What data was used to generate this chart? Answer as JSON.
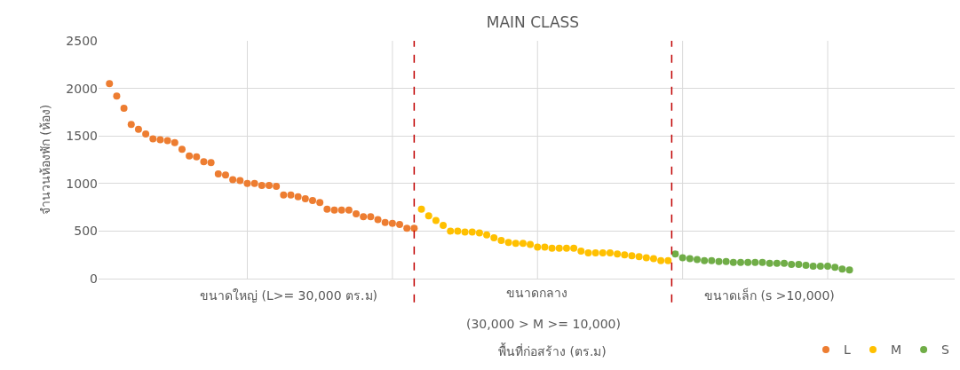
{
  "chart_data": {
    "type": "scatter",
    "title": "MAIN CLASS",
    "xlabel": "พื้นที่ก่อสร้าง (ตร.ม)",
    "ylabel": "จำนวนห้องพัก (ห้อง)",
    "annotations": [
      "ขนาดใหญ่ (L>= 30,000 ตร.ม)",
      "ขนาดกลาง",
      "(30,000 > M >= 10,000)",
      "ขนาดเล็ก (s >10,000)"
    ],
    "categories": [
      null,
      null,
      null,
      null,
      null,
      null,
      null,
      null,
      null,
      null,
      null,
      null,
      null,
      null,
      null,
      null,
      null,
      null,
      null,
      null,
      null,
      null,
      null,
      null,
      null,
      null,
      null,
      null,
      null,
      null,
      null,
      null,
      null,
      null,
      null,
      null,
      null,
      null,
      null,
      null,
      null,
      null,
      null,
      null,
      null,
      null,
      null,
      null,
      null,
      null,
      null,
      null,
      null,
      null,
      null,
      null,
      null,
      null,
      null,
      null,
      null,
      null,
      null,
      null,
      null,
      null,
      null,
      null,
      null,
      null,
      null,
      null,
      null,
      null,
      null,
      null,
      null,
      null,
      null,
      null,
      null,
      null,
      null,
      null,
      null,
      null,
      null,
      null,
      null,
      null,
      null,
      null,
      null,
      null,
      null,
      null,
      null,
      null,
      null,
      null,
      null,
      null,
      null,
      null,
      null,
      null,
      null,
      null,
      null,
      null,
      null,
      null,
      null,
      null,
      null,
      null,
      null,
      null
    ],
    "ylim": [
      0,
      2500
    ],
    "yticks": [
      0,
      500,
      1000,
      1500,
      2000,
      2500
    ],
    "tick_labels": "y",
    "grid": true,
    "legend": "bottom right",
    "marker": "circle",
    "series": [
      {
        "name": "L",
        "color": "#ed7d31",
        "values": [
          null,
          2050,
          1920,
          1790,
          1620,
          1570,
          1520,
          1470,
          1460,
          1450,
          1430,
          1360,
          1290,
          1280,
          1230,
          1220,
          1100,
          1090,
          1040,
          1030,
          1000,
          1000,
          980,
          980,
          970,
          880,
          880,
          860,
          840,
          820,
          800,
          730,
          720,
          720,
          720,
          680,
          650,
          650,
          620,
          590,
          580,
          570,
          530,
          530,
          null,
          null,
          null,
          null,
          null,
          null,
          null,
          null,
          null,
          null,
          null,
          null,
          null,
          null,
          null,
          null,
          null,
          null,
          null,
          null,
          null,
          null,
          null,
          null,
          null,
          null,
          null,
          null,
          null,
          null,
          null,
          null,
          null,
          null,
          null,
          null,
          null,
          null,
          null,
          null,
          null,
          null,
          null,
          null,
          null,
          null,
          null,
          null,
          null,
          null,
          null,
          null,
          null,
          null,
          null,
          null,
          null,
          null,
          null,
          null,
          null,
          null,
          null,
          null,
          null,
          null,
          null,
          null,
          null,
          null,
          null,
          null,
          null,
          null
        ]
      },
      {
        "name": "M",
        "color": "#ffc000",
        "values": [
          null,
          null,
          null,
          null,
          null,
          null,
          null,
          null,
          null,
          null,
          null,
          null,
          null,
          null,
          null,
          null,
          null,
          null,
          null,
          null,
          null,
          null,
          null,
          null,
          null,
          null,
          null,
          null,
          null,
          null,
          null,
          null,
          null,
          null,
          null,
          null,
          null,
          null,
          null,
          null,
          null,
          null,
          null,
          null,
          730,
          660,
          610,
          560,
          500,
          500,
          490,
          490,
          480,
          460,
          430,
          400,
          380,
          370,
          370,
          360,
          330,
          330,
          320,
          320,
          320,
          320,
          290,
          270,
          270,
          270,
          270,
          260,
          250,
          240,
          230,
          220,
          210,
          190,
          190,
          null,
          null,
          null,
          null,
          null,
          null,
          null,
          null,
          null,
          null,
          null,
          null,
          null,
          null,
          null,
          null,
          null,
          null,
          null,
          null,
          null,
          null,
          null,
          null,
          null,
          null,
          null,
          null,
          null,
          null,
          null,
          null,
          null,
          null,
          null,
          null,
          null,
          null,
          null
        ]
      },
      {
        "name": "S",
        "color": "#70ad47",
        "values": [
          null,
          null,
          null,
          null,
          null,
          null,
          null,
          null,
          null,
          null,
          null,
          null,
          null,
          null,
          null,
          null,
          null,
          null,
          null,
          null,
          null,
          null,
          null,
          null,
          null,
          null,
          null,
          null,
          null,
          null,
          null,
          null,
          null,
          null,
          null,
          null,
          null,
          null,
          null,
          null,
          null,
          null,
          null,
          null,
          null,
          null,
          null,
          null,
          null,
          null,
          null,
          null,
          null,
          null,
          null,
          null,
          null,
          null,
          null,
          null,
          null,
          null,
          null,
          null,
          null,
          null,
          null,
          null,
          null,
          null,
          null,
          null,
          null,
          null,
          null,
          null,
          null,
          null,
          null,
          260,
          220,
          210,
          200,
          190,
          190,
          180,
          180,
          170,
          170,
          170,
          170,
          170,
          160,
          160,
          160,
          150,
          150,
          140,
          130,
          130,
          130,
          120,
          100,
          90,
          null,
          null,
          null,
          null,
          null,
          null,
          null,
          null,
          null,
          null,
          null,
          null,
          null,
          null
        ]
      }
    ]
  }
}
